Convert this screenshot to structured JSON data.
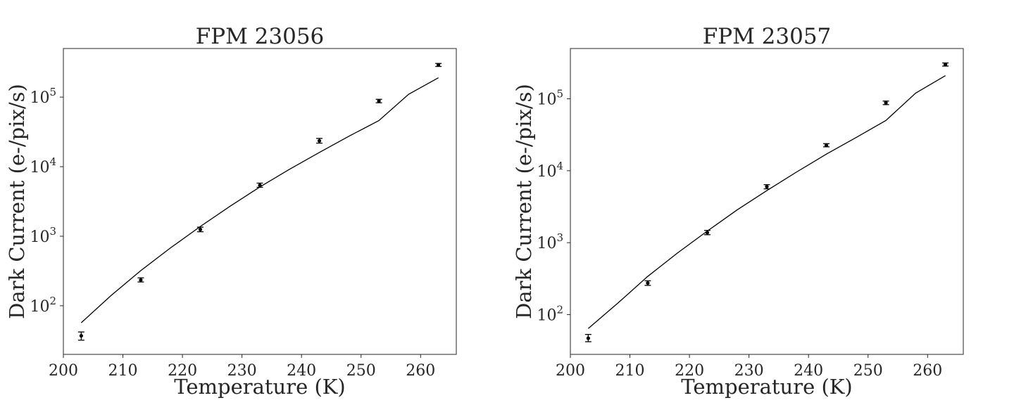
{
  "chart_data": [
    {
      "type": "scatter",
      "title": "FPM 23056",
      "xlabel": "Temperature (K)",
      "ylabel": "Dark Current (e-/pix/s)",
      "xlim": [
        200,
        266
      ],
      "ylim": [
        20,
        500000
      ],
      "yscale": "log",
      "grid": false,
      "xticks": [
        200,
        210,
        220,
        230,
        240,
        250,
        260
      ],
      "yticks": [
        {
          "base": "10",
          "exp": "2",
          "value": 100
        },
        {
          "base": "10",
          "exp": "3",
          "value": 1000
        },
        {
          "base": "10",
          "exp": "4",
          "value": 10000
        },
        {
          "base": "10",
          "exp": "5",
          "value": 100000
        }
      ],
      "series": [
        {
          "kind": "errorbar",
          "x": [
            203,
            213,
            223,
            233,
            243,
            253,
            263
          ],
          "y": [
            37,
            235,
            1250,
            5400,
            23500,
            88000,
            290000
          ],
          "yerr_low": [
            32,
            220,
            1160,
            5050,
            21800,
            83000,
            276000
          ],
          "yerr_high": [
            42,
            252,
            1350,
            5800,
            25500,
            93000,
            305000
          ]
        },
        {
          "kind": "fit-line",
          "x": [
            203,
            208,
            213,
            218,
            223,
            228,
            233,
            238,
            243,
            248,
            253,
            258,
            263
          ],
          "y": [
            57,
            140,
            320,
            680,
            1380,
            2700,
            5100,
            9200,
            16000,
            27500,
            46000,
            110000,
            190000
          ]
        }
      ]
    },
    {
      "type": "scatter",
      "title": "FPM 23057",
      "xlabel": "Temperature (K)",
      "ylabel": "Dark Current (e-/pix/s)",
      "xlim": [
        200,
        266
      ],
      "ylim": [
        28,
        500000
      ],
      "yscale": "log",
      "grid": false,
      "xticks": [
        200,
        210,
        220,
        230,
        240,
        250,
        260
      ],
      "yticks": [
        {
          "base": "10",
          "exp": "2",
          "value": 100
        },
        {
          "base": "10",
          "exp": "3",
          "value": 1000
        },
        {
          "base": "10",
          "exp": "4",
          "value": 10000
        },
        {
          "base": "10",
          "exp": "5",
          "value": 100000
        }
      ],
      "series": [
        {
          "kind": "errorbar",
          "x": [
            203,
            213,
            223,
            233,
            243,
            253,
            263
          ],
          "y": [
            47,
            275,
            1380,
            6000,
            22500,
            88000,
            300000
          ],
          "yerr_low": [
            42,
            255,
            1290,
            5600,
            21500,
            83000,
            285000
          ],
          "yerr_high": [
            53,
            295,
            1480,
            6400,
            23800,
            93000,
            315000
          ]
        },
        {
          "kind": "fit-line",
          "x": [
            203,
            208,
            213,
            218,
            223,
            228,
            233,
            238,
            243,
            248,
            253,
            258,
            263
          ],
          "y": [
            64,
            145,
            340,
            720,
            1450,
            2850,
            5300,
            9600,
            17000,
            29000,
            50000,
            120000,
            210000
          ]
        }
      ]
    }
  ]
}
